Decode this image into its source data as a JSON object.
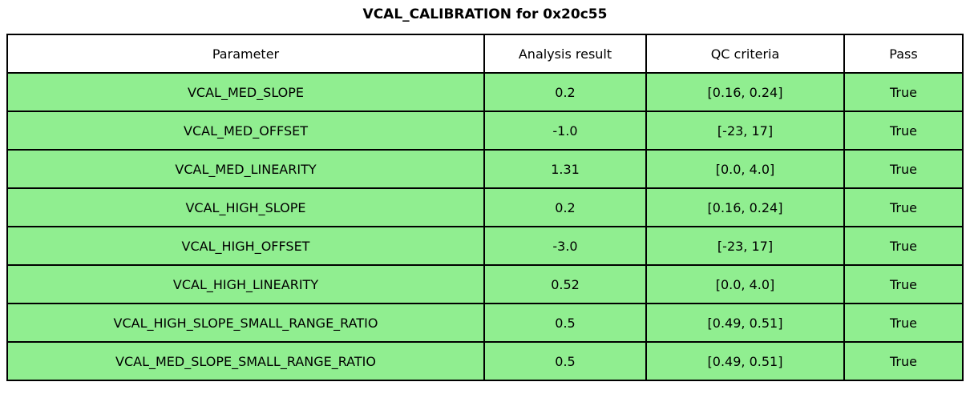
{
  "title": "VCAL_CALIBRATION for 0x20c55",
  "colors": {
    "row_bg": "#90ee90",
    "header_bg": "#ffffff",
    "border": "#000000",
    "text": "#000000",
    "page_bg": "#ffffff"
  },
  "table": {
    "columns": [
      "Parameter",
      "Analysis result",
      "QC criteria",
      "Pass"
    ],
    "rows": [
      {
        "parameter": "VCAL_MED_SLOPE",
        "analysis_result": "0.2",
        "qc_criteria": "[0.16, 0.24]",
        "pass": "True"
      },
      {
        "parameter": "VCAL_MED_OFFSET",
        "analysis_result": "-1.0",
        "qc_criteria": "[-23, 17]",
        "pass": "True"
      },
      {
        "parameter": "VCAL_MED_LINEARITY",
        "analysis_result": "1.31",
        "qc_criteria": "[0.0, 4.0]",
        "pass": "True"
      },
      {
        "parameter": "VCAL_HIGH_SLOPE",
        "analysis_result": "0.2",
        "qc_criteria": "[0.16, 0.24]",
        "pass": "True"
      },
      {
        "parameter": "VCAL_HIGH_OFFSET",
        "analysis_result": "-3.0",
        "qc_criteria": "[-23, 17]",
        "pass": "True"
      },
      {
        "parameter": "VCAL_HIGH_LINEARITY",
        "analysis_result": "0.52",
        "qc_criteria": "[0.0, 4.0]",
        "pass": "True"
      },
      {
        "parameter": "VCAL_HIGH_SLOPE_SMALL_RANGE_RATIO",
        "analysis_result": "0.5",
        "qc_criteria": "[0.49, 0.51]",
        "pass": "True"
      },
      {
        "parameter": "VCAL_MED_SLOPE_SMALL_RANGE_RATIO",
        "analysis_result": "0.5",
        "qc_criteria": "[0.49, 0.51]",
        "pass": "True"
      }
    ]
  },
  "chart_data": {
    "type": "table",
    "title": "VCAL_CALIBRATION for 0x20c55",
    "columns": [
      "Parameter",
      "Analysis result",
      "QC criteria",
      "Pass"
    ],
    "rows": [
      [
        "VCAL_MED_SLOPE",
        "0.2",
        "[0.16, 0.24]",
        "True"
      ],
      [
        "VCAL_MED_OFFSET",
        "-1.0",
        "[-23, 17]",
        "True"
      ],
      [
        "VCAL_MED_LINEARITY",
        "1.31",
        "[0.0, 4.0]",
        "True"
      ],
      [
        "VCAL_HIGH_SLOPE",
        "0.2",
        "[0.16, 0.24]",
        "True"
      ],
      [
        "VCAL_HIGH_OFFSET",
        "-3.0",
        "[-23, 17]",
        "True"
      ],
      [
        "VCAL_HIGH_LINEARITY",
        "0.52",
        "[0.0, 4.0]",
        "True"
      ],
      [
        "VCAL_HIGH_SLOPE_SMALL_RANGE_RATIO",
        "0.5",
        "[0.49, 0.51]",
        "True"
      ],
      [
        "VCAL_MED_SLOPE_SMALL_RANGE_RATIO",
        "0.5",
        "[0.49, 0.51]",
        "True"
      ]
    ],
    "layout_hints": {
      "row_fill_color": "#90ee90",
      "header_fill_color": "#ffffff",
      "grid": true,
      "cell_text_align": "center"
    }
  }
}
